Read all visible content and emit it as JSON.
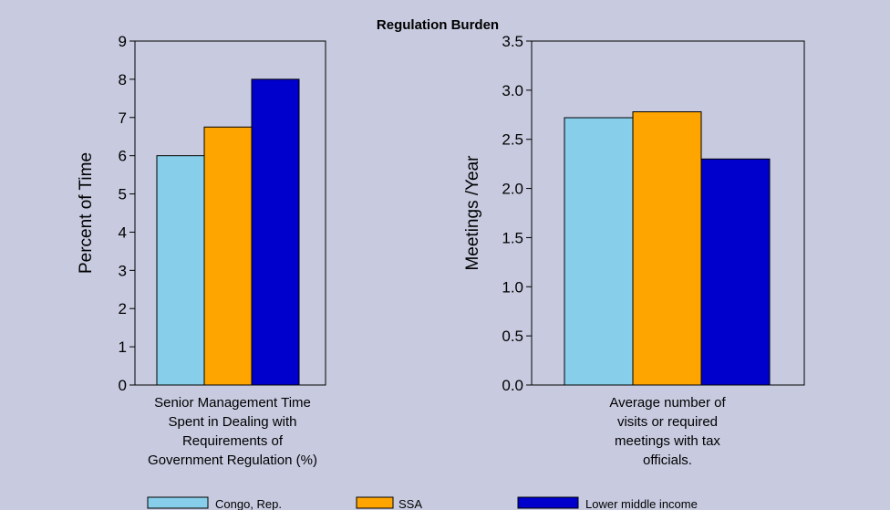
{
  "chart_data": {
    "title": "Regulation Burden",
    "legend_placement": "bottom",
    "series_colors": [
      "#87ceeb",
      "#ffa500",
      "#0000cd"
    ],
    "legend": [
      "Congo, Rep.",
      "SSA",
      "Lower middle income"
    ],
    "charts": [
      {
        "type": "bar",
        "ylabel": "Percent of Time",
        "ylim": [
          0,
          9
        ],
        "yticks": [
          "0",
          "1",
          "2",
          "3",
          "4",
          "5",
          "6",
          "7",
          "8",
          "9"
        ],
        "category_label": [
          "Senior Management Time",
          "Spent in Dealing with",
          "Requirements of",
          "Government Regulation (%)"
        ],
        "series": [
          {
            "name": "Congo, Rep.",
            "values": [
              6.0
            ]
          },
          {
            "name": "SSA",
            "values": [
              6.75
            ]
          },
          {
            "name": "Lower middle income",
            "values": [
              8.0
            ]
          }
        ]
      },
      {
        "type": "bar",
        "ylabel": "Meetings /Year",
        "ylim": [
          0,
          3.5
        ],
        "yticks": [
          "0.0",
          "0.5",
          "1.0",
          "1.5",
          "2.0",
          "2.5",
          "3.0",
          "3.5"
        ],
        "category_label": [
          "Average number of",
          "visits or required",
          "meetings with tax",
          "officials."
        ],
        "series": [
          {
            "name": "Congo, Rep.",
            "values": [
              2.72
            ]
          },
          {
            "name": "SSA",
            "values": [
              2.78
            ]
          },
          {
            "name": "Lower middle income",
            "values": [
              2.3
            ]
          }
        ]
      }
    ]
  }
}
